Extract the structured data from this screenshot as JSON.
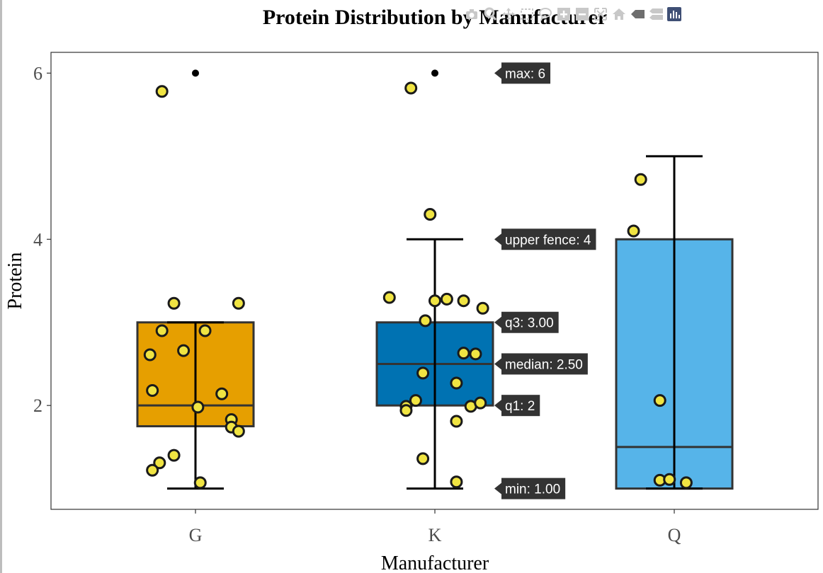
{
  "title": "Protein Distribution by Manufacturer",
  "modebar": [
    {
      "name": "camera-icon"
    },
    {
      "name": "zoom-icon"
    },
    {
      "name": "pan-icon"
    },
    {
      "name": "box-select-icon"
    },
    {
      "name": "lasso-select-icon"
    },
    {
      "name": "zoom-in-icon"
    },
    {
      "name": "zoom-out-icon"
    },
    {
      "name": "autoscale-icon"
    },
    {
      "name": "reset-axes-icon"
    },
    {
      "name": "hover-closest-icon"
    },
    {
      "name": "hover-compare-icon"
    },
    {
      "name": "plotly-logo-icon"
    }
  ],
  "chart_data": {
    "type": "box",
    "title": "Protein Distribution by Manufacturer",
    "xlabel": "Manufacturer",
    "ylabel": "Protein",
    "categories": [
      "G",
      "K",
      "Q"
    ],
    "ylim": [
      0.75,
      6.25
    ],
    "yticks": [
      2,
      4,
      6
    ],
    "grid": false,
    "boxes": [
      {
        "category": "G",
        "color": "#E69F00",
        "min": 1,
        "q1": 1.75,
        "median": 2,
        "q3": 3,
        "upper_fence": 3,
        "outliers": [
          6
        ]
      },
      {
        "category": "K",
        "color": "#0072B2",
        "min": 1,
        "q1": 2,
        "median": 2.5,
        "q3": 3,
        "upper_fence": 4,
        "outliers": [
          6
        ]
      },
      {
        "category": "Q",
        "color": "#56B4E9",
        "min": 1,
        "q1": 1,
        "median": 1.5,
        "q3": 4,
        "upper_fence": 5,
        "outliers": []
      }
    ],
    "jitter_color": "#F0E442",
    "jitter_points": [
      {
        "category": "G",
        "offset": -0.14,
        "y": 5.78
      },
      {
        "category": "G",
        "offset": -0.09,
        "y": 3.23
      },
      {
        "category": "G",
        "offset": 0.18,
        "y": 3.23
      },
      {
        "category": "G",
        "offset": -0.14,
        "y": 2.9
      },
      {
        "category": "G",
        "offset": 0.04,
        "y": 2.9
      },
      {
        "category": "G",
        "offset": -0.19,
        "y": 2.61
      },
      {
        "category": "G",
        "offset": -0.05,
        "y": 2.66
      },
      {
        "category": "G",
        "offset": -0.18,
        "y": 2.18
      },
      {
        "category": "G",
        "offset": 0.11,
        "y": 2.14
      },
      {
        "category": "G",
        "offset": 0.01,
        "y": 1.98
      },
      {
        "category": "G",
        "offset": 0.15,
        "y": 1.83
      },
      {
        "category": "G",
        "offset": 0.15,
        "y": 1.74
      },
      {
        "category": "G",
        "offset": 0.18,
        "y": 1.69
      },
      {
        "category": "G",
        "offset": -0.09,
        "y": 1.4
      },
      {
        "category": "G",
        "offset": -0.15,
        "y": 1.31
      },
      {
        "category": "G",
        "offset": -0.18,
        "y": 1.22
      },
      {
        "category": "G",
        "offset": 0.02,
        "y": 1.07
      },
      {
        "category": "K",
        "offset": -0.1,
        "y": 5.82
      },
      {
        "category": "K",
        "offset": -0.02,
        "y": 4.3
      },
      {
        "category": "K",
        "offset": -0.19,
        "y": 3.3
      },
      {
        "category": "K",
        "offset": 0.0,
        "y": 3.26
      },
      {
        "category": "K",
        "offset": 0.05,
        "y": 3.28
      },
      {
        "category": "K",
        "offset": 0.12,
        "y": 3.26
      },
      {
        "category": "K",
        "offset": 0.2,
        "y": 3.17
      },
      {
        "category": "K",
        "offset": -0.04,
        "y": 3.02
      },
      {
        "category": "K",
        "offset": 0.12,
        "y": 2.63
      },
      {
        "category": "K",
        "offset": 0.17,
        "y": 2.62
      },
      {
        "category": "K",
        "offset": -0.05,
        "y": 2.39
      },
      {
        "category": "K",
        "offset": 0.09,
        "y": 2.27
      },
      {
        "category": "K",
        "offset": -0.08,
        "y": 2.06
      },
      {
        "category": "K",
        "offset": -0.12,
        "y": 1.99
      },
      {
        "category": "K",
        "offset": -0.12,
        "y": 1.94
      },
      {
        "category": "K",
        "offset": 0.15,
        "y": 1.99
      },
      {
        "category": "K",
        "offset": 0.19,
        "y": 2.03
      },
      {
        "category": "K",
        "offset": 0.09,
        "y": 1.81
      },
      {
        "category": "K",
        "offset": -0.05,
        "y": 1.36
      },
      {
        "category": "K",
        "offset": 0.09,
        "y": 1.08
      },
      {
        "category": "Q",
        "offset": -0.14,
        "y": 4.72
      },
      {
        "category": "Q",
        "offset": -0.17,
        "y": 4.1
      },
      {
        "category": "Q",
        "offset": -0.06,
        "y": 2.06
      },
      {
        "category": "Q",
        "offset": -0.06,
        "y": 1.1
      },
      {
        "category": "Q",
        "offset": -0.02,
        "y": 1.11
      },
      {
        "category": "Q",
        "offset": 0.05,
        "y": 1.07
      }
    ],
    "hover_labels": [
      {
        "text": "max: 6",
        "y": 6
      },
      {
        "text": "upper fence: 4",
        "y": 4
      },
      {
        "text": "q3: 3.00",
        "y": 3
      },
      {
        "text": "median: 2.50",
        "y": 2.5
      },
      {
        "text": "q1: 2",
        "y": 2
      },
      {
        "text": "min: 1.00",
        "y": 1
      }
    ]
  }
}
